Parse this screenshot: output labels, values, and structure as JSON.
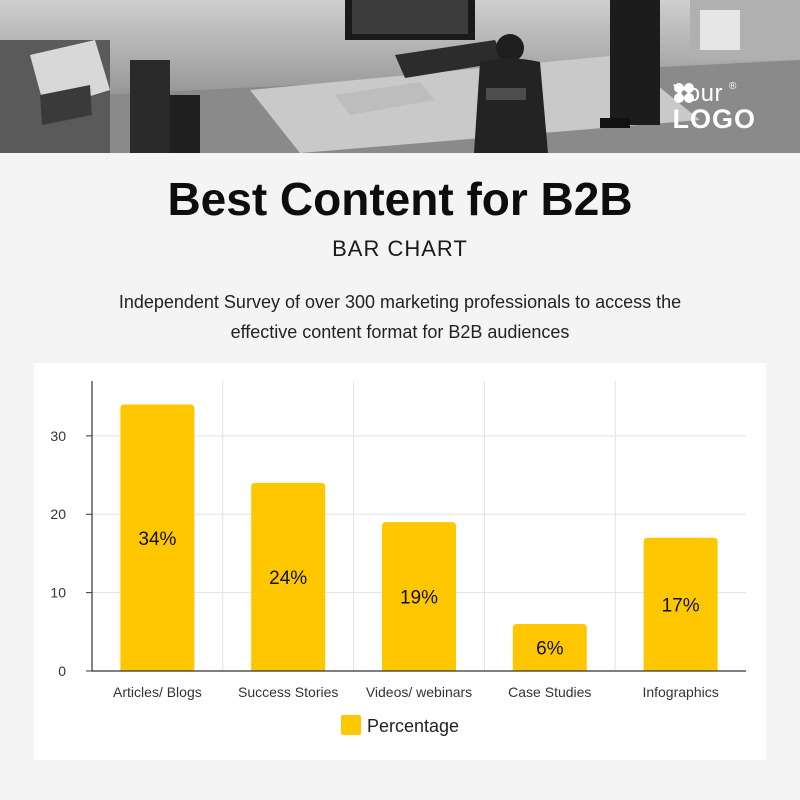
{
  "header": {
    "logo_line1": "Your",
    "logo_line2": "LOGO",
    "logo_mark": "®"
  },
  "title": "Best Content for B2B",
  "subtitle": "BAR CHART",
  "description": "Independent Survey of over 300 marketing professionals to access the effective content format for B2B audiences",
  "colors": {
    "bar": "#FFC700",
    "text": "#111111"
  },
  "chart_data": {
    "type": "bar",
    "categories": [
      "Articles/ Blogs",
      "Success Stories",
      "Videos/ webinars",
      "Case Studies",
      "Infographics"
    ],
    "series": [
      {
        "name": "Percentage",
        "values": [
          34,
          24,
          19,
          6,
          17
        ]
      }
    ],
    "data_labels": [
      "34%",
      "24%",
      "19%",
      "6%",
      "17%"
    ],
    "yticks": [
      0,
      10,
      20,
      30
    ],
    "ylim": [
      0,
      37
    ],
    "legend_position": "bottom",
    "grid": true
  }
}
